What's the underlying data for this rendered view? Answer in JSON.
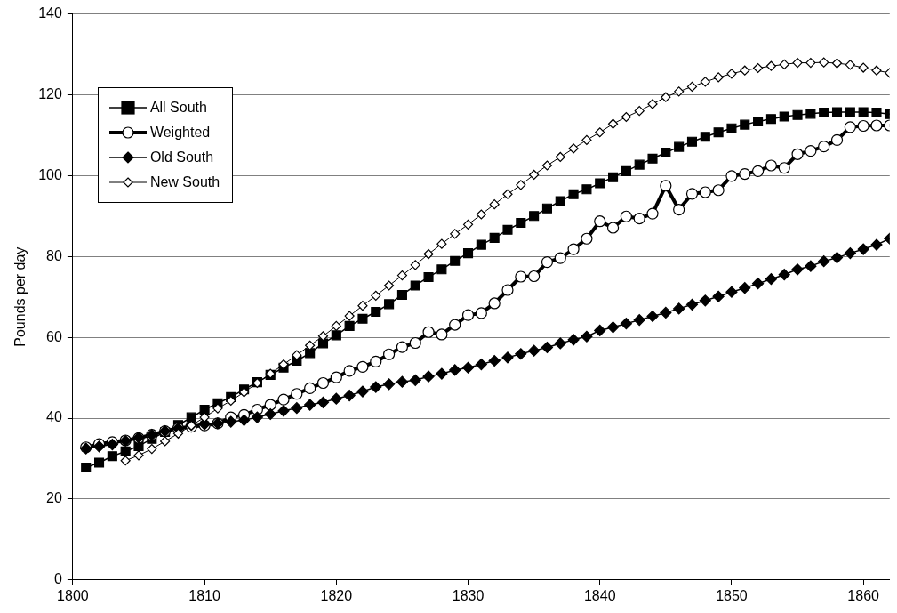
{
  "chart_data": {
    "type": "line",
    "ylabel": "Pounds per day",
    "x": [
      1801,
      1802,
      1803,
      1804,
      1805,
      1806,
      1807,
      1808,
      1809,
      1810,
      1811,
      1812,
      1813,
      1814,
      1815,
      1816,
      1817,
      1818,
      1819,
      1820,
      1821,
      1822,
      1823,
      1824,
      1825,
      1826,
      1827,
      1828,
      1829,
      1830,
      1831,
      1832,
      1833,
      1834,
      1835,
      1836,
      1837,
      1838,
      1839,
      1840,
      1841,
      1842,
      1843,
      1844,
      1845,
      1846,
      1847,
      1848,
      1849,
      1850,
      1851,
      1852,
      1853,
      1854,
      1855,
      1856,
      1857,
      1858,
      1859,
      1860,
      1861,
      1862
    ],
    "series": [
      {
        "name": "All South",
        "color": "#000000",
        "marker": "square",
        "values": [
          27.8,
          29,
          30.6,
          31.8,
          33.1,
          34.9,
          36.6,
          38.3,
          40.2,
          42.1,
          43.7,
          45.2,
          47.1,
          48.9,
          50.7,
          52.5,
          54.2,
          56.1,
          58.5,
          60.5,
          62.8,
          64.6,
          66.3,
          68.2,
          70.5,
          72.8,
          74.9,
          76.8,
          78.9,
          80.8,
          82.9,
          84.6,
          86.6,
          88.3,
          90,
          91.9,
          93.7,
          95.4,
          96.6,
          98.1,
          99.6,
          101.1,
          102.7,
          104.2,
          105.7,
          107.1,
          108.4,
          109.6,
          110.7,
          111.7,
          112.6,
          113.4,
          114,
          114.6,
          115,
          115.3,
          115.6,
          115.7,
          115.7,
          115.7,
          115.6,
          115.2
        ]
      },
      {
        "name": "Weighted",
        "color": "#000000",
        "marker": "circle",
        "values": [
          32.8,
          33.6,
          34.1,
          34.5,
          35.1,
          35.9,
          36.8,
          37.5,
          37.9,
          38.2,
          38.7,
          40.2,
          40.8,
          42.1,
          43.3,
          44.6,
          46,
          47.4,
          48.7,
          50.1,
          51.7,
          52.7,
          54,
          55.8,
          57.6,
          58.6,
          61.3,
          60.7,
          63.1,
          65.5,
          66,
          68.4,
          71.7,
          75,
          75.1,
          78.6,
          79.6,
          81.8,
          84.4,
          88.7,
          87.1,
          89.9,
          89.4,
          90.6,
          97.5,
          91.6,
          95.5,
          95.9,
          96.4,
          99.9,
          100.4,
          101.1,
          102.5,
          101.9,
          105.3,
          106.1,
          107.2,
          108.8,
          112,
          112.3,
          112.4,
          112.4
        ]
      },
      {
        "name": "Old South",
        "color": "#000000",
        "marker": "diamond",
        "values": [
          32.5,
          33,
          33.5,
          34.4,
          35.2,
          35.9,
          36.8,
          37.5,
          38.3,
          38.5,
          38.7,
          39.1,
          39.5,
          40.2,
          41,
          41.8,
          42.5,
          43.3,
          43.9,
          44.8,
          45.6,
          46.6,
          47.7,
          48.4,
          49,
          49.4,
          50.3,
          51,
          51.9,
          52.5,
          53.3,
          54.2,
          55,
          55.9,
          56.7,
          57.5,
          58.5,
          59.4,
          60.2,
          61.7,
          62.5,
          63.4,
          64.3,
          65.2,
          66.1,
          67.1,
          68.1,
          69.1,
          70.1,
          71.2,
          72.2,
          73.3,
          74.4,
          75.5,
          76.8,
          77.6,
          78.8,
          79.7,
          80.8,
          81.8,
          82.9,
          84.4
        ]
      },
      {
        "name": "New South",
        "color": "#000000",
        "marker": "diamond",
        "values": [
          null,
          null,
          null,
          29.5,
          30.8,
          32.4,
          34.3,
          36.2,
          38.2,
          40.2,
          42.4,
          44.3,
          46.4,
          48.7,
          51,
          53.3,
          55.6,
          58,
          60.3,
          62.8,
          65.3,
          67.8,
          70.3,
          72.8,
          75.3,
          77.9,
          80.6,
          83.1,
          85.6,
          87.9,
          90.4,
          92.9,
          95.4,
          97.7,
          100.2,
          102.5,
          104.6,
          106.7,
          108.8,
          110.7,
          112.8,
          114.5,
          116,
          117.7,
          119.4,
          120.8,
          122,
          123.2,
          124.3,
          125.2,
          126,
          126.6,
          127.1,
          127.5,
          127.9,
          127.9,
          128,
          127.8,
          127.4,
          126.7,
          126,
          125.4
        ]
      }
    ],
    "xlim": [
      1800,
      1862
    ],
    "xticks": [
      1800,
      1810,
      1820,
      1830,
      1840,
      1850,
      1860
    ],
    "ylim": [
      0,
      140
    ],
    "yticks": [
      0,
      20,
      40,
      60,
      80,
      100,
      120,
      140
    ],
    "grid": "y",
    "legend": "top left"
  }
}
